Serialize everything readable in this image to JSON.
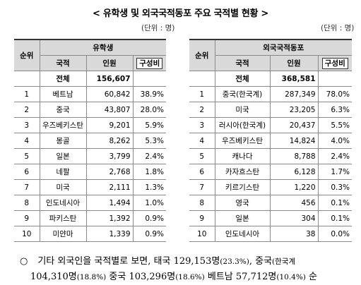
{
  "title": "< 유학생 및 외국국적동포 주요 국적별 현황 >",
  "unit_left": "(단위 : 명)",
  "unit_right": "(단위 : 명)",
  "students": {
    "rank_header": "순위",
    "group_header": "유학생",
    "col_country": "국적",
    "col_people": "인원",
    "col_ratio": "구성비",
    "total_label": "전체",
    "total_value": "156,607",
    "rows": [
      {
        "rank": "1",
        "country": "베트남",
        "people": "60,842",
        "pct": "38.9%"
      },
      {
        "rank": "2",
        "country": "중국",
        "people": "43,807",
        "pct": "28.0%"
      },
      {
        "rank": "3",
        "country": "우즈베키스탄",
        "people": "9,201",
        "pct": "5.9%"
      },
      {
        "rank": "4",
        "country": "몽골",
        "people": "8,262",
        "pct": "5.3%"
      },
      {
        "rank": "5",
        "country": "일본",
        "people": "3,799",
        "pct": "2.4%"
      },
      {
        "rank": "6",
        "country": "네팔",
        "people": "2,768",
        "pct": "1.8%"
      },
      {
        "rank": "7",
        "country": "미국",
        "people": "2,111",
        "pct": "1.3%"
      },
      {
        "rank": "8",
        "country": "인도네시아",
        "people": "1,494",
        "pct": "1.0%"
      },
      {
        "rank": "9",
        "country": "파키스탄",
        "people": "1,392",
        "pct": "0.9%"
      },
      {
        "rank": "10",
        "country": "미얀마",
        "people": "1,339",
        "pct": "0.9%"
      }
    ]
  },
  "ethnic": {
    "rank_header": "순위",
    "group_header": "외국국적동포",
    "col_country": "국적",
    "col_people": "인원",
    "col_ratio": "구성비",
    "total_label": "전체",
    "total_value": "368,581",
    "rows": [
      {
        "rank": "1",
        "country": "중국(한국계)",
        "people": "287,349",
        "pct": "78.0%"
      },
      {
        "rank": "2",
        "country": "미국",
        "people": "23,205",
        "pct": "6.3%"
      },
      {
        "rank": "3",
        "country": "러시아(한국계)",
        "people": "20,437",
        "pct": "5.5%"
      },
      {
        "rank": "4",
        "country": "우즈베키스탄",
        "people": "14,824",
        "pct": "4.0%"
      },
      {
        "rank": "5",
        "country": "캐나다",
        "people": "8,788",
        "pct": "2.4%"
      },
      {
        "rank": "6",
        "country": "카자흐스탄",
        "people": "6,128",
        "pct": "1.7%"
      },
      {
        "rank": "7",
        "country": "키르기스탄",
        "people": "1,220",
        "pct": "0.3%"
      },
      {
        "rank": "8",
        "country": "영국",
        "people": "456",
        "pct": "0.1%"
      },
      {
        "rank": "9",
        "country": "일본",
        "people": "304",
        "pct": "0.1%"
      },
      {
        "rank": "10",
        "country": "인도네시아",
        "people": "38",
        "pct": "0.0%"
      }
    ]
  },
  "note": {
    "bullet": "○",
    "l1_a": "기타 외국인을 국적별로 보면, 태국 ",
    "l1_b": "129,153명",
    "l1_c": "(23.3%)",
    "l1_d": ", 중국",
    "l1_e": "(한국계",
    "l2_a": "104,310명",
    "l2_b": "(18.8%)",
    "l2_c": " 중국 ",
    "l2_d": "103,296명",
    "l2_e": "(18.6%)",
    "l2_f": " 베트남 ",
    "l2_g": "57,712명",
    "l2_h": "(10.4%)",
    "l2_i": " 순"
  }
}
